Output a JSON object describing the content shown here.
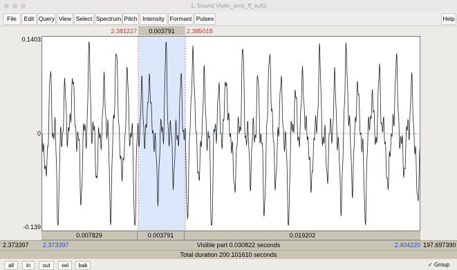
{
  "window": {
    "title": "1. Sound Violin_arco_ff_sulG"
  },
  "menu": [
    {
      "label": "File"
    },
    {
      "label": "Edit"
    },
    {
      "label": "Query"
    },
    {
      "label": "View"
    },
    {
      "label": "Select"
    },
    {
      "label": "Spectrum"
    },
    {
      "label": "Pitch"
    },
    {
      "label": "Intensity"
    },
    {
      "label": "Formant"
    },
    {
      "label": "Pulses"
    }
  ],
  "help_label": "Help",
  "selection": {
    "start": "2.381227",
    "duration": "0.003791",
    "end": "2.385018"
  },
  "amplitude": {
    "max": "0.1403",
    "zero": "0",
    "min": "-0.139"
  },
  "segments": {
    "left": "0.007829",
    "selected": "0.003791",
    "right": "0.019202"
  },
  "visible": {
    "window_start": "2.373397",
    "start": "2.373397",
    "label": "Visible part 0.030822 seconds",
    "end": "2.404220",
    "remaining": "197.697390"
  },
  "total": {
    "label": "Total duration 200.101610 seconds"
  },
  "buttons": [
    {
      "label": "all"
    },
    {
      "label": "in"
    },
    {
      "label": "out"
    },
    {
      "label": "sel"
    },
    {
      "label": "bak"
    }
  ],
  "group": {
    "label": "Group",
    "checked": true
  },
  "colors": {
    "selection": "#dbe7fb",
    "cursor_red": "#d8322a",
    "time_blue": "#2a4bd8",
    "band": "#c9c5b4"
  }
}
